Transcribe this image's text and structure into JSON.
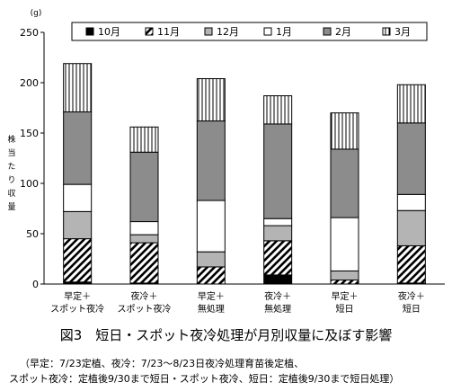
{
  "chart_data": {
    "type": "bar",
    "stacked": true,
    "unit_label": "(g)",
    "ylabel": "株当たり収量",
    "ylim": [
      0,
      250
    ],
    "yticks": [
      0,
      50,
      100,
      150,
      200,
      250
    ],
    "legend_position": "top-right",
    "categories": [
      [
        "早定＋",
        "スポット夜冷"
      ],
      [
        "夜冷＋",
        "スポット夜冷"
      ],
      [
        "早定＋",
        "無処理"
      ],
      [
        "夜冷＋",
        "無処理"
      ],
      [
        "早定＋",
        "短日"
      ],
      [
        "夜冷＋",
        "短日"
      ]
    ],
    "series": [
      {
        "name": "10月",
        "fill": "#000000",
        "values": [
          2,
          1,
          0,
          9,
          0,
          1
        ]
      },
      {
        "name": "11月",
        "fill": "hatch",
        "values": [
          43,
          40,
          17,
          34,
          4,
          37
        ]
      },
      {
        "name": "12月",
        "fill": "#b4b4b4",
        "values": [
          27,
          8,
          15,
          15,
          9,
          35
        ]
      },
      {
        "name": "1月",
        "fill": "#ffffff",
        "values": [
          27,
          13,
          51,
          7,
          53,
          16
        ]
      },
      {
        "name": "2月",
        "fill": "#8c8c8c",
        "values": [
          72,
          69,
          79,
          94,
          68,
          71
        ]
      },
      {
        "name": "3月",
        "fill": "vlines",
        "values": [
          48,
          25,
          42,
          28,
          36,
          38
        ]
      }
    ]
  },
  "caption": {
    "title": "図3　短日・スポット夜冷処理が月別収量に及ぼす影響",
    "note_line1": "（早定：7/23定植、夜冷：7/23～8/23日夜冷処理育苗後定植、",
    "note_line2": "スポット夜冷：定植後9/30まで短日・スポット夜冷、短日：定植後9/30まで短日処理）"
  }
}
